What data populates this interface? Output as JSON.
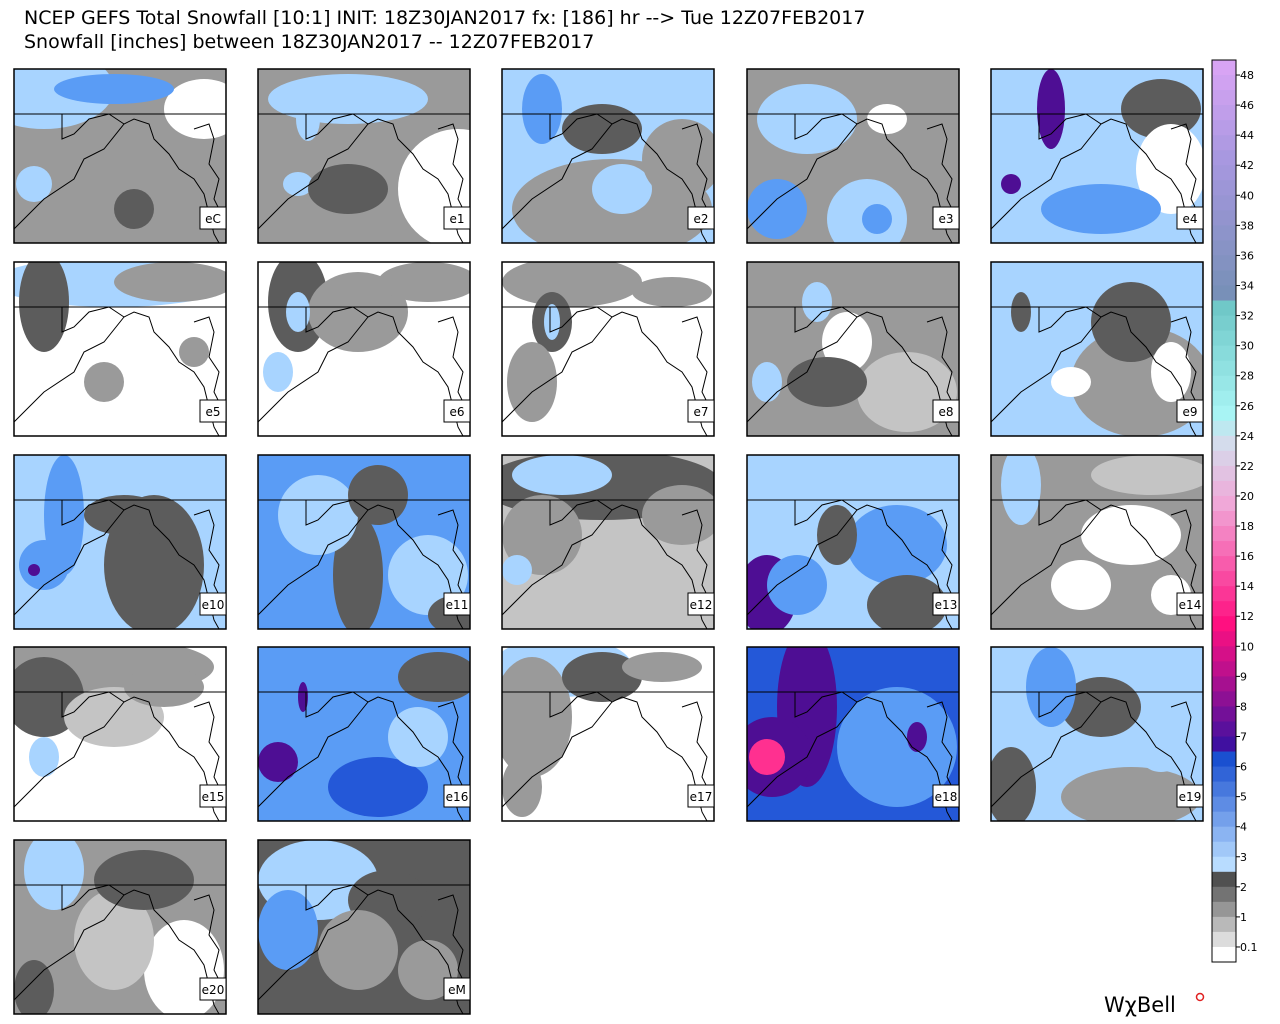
{
  "header": {
    "line1": "NCEP GEFS Total Snowfall [10:1] INIT: 18Z30JAN2017 fx: [186] hr --> Tue 12Z07FEB2017",
    "line2": "Snowfall [inches] between 18Z30JAN2017 -- 12Z07FEB2017"
  },
  "panels": [
    "eC",
    "e1",
    "e2",
    "e3",
    "e4",
    "e5",
    "e6",
    "e7",
    "e8",
    "e9",
    "e10",
    "e11",
    "e12",
    "e13",
    "e14",
    "e15",
    "e16",
    "e17",
    "e18",
    "e19",
    "e20",
    "eM"
  ],
  "colorbar": {
    "labels": [
      "48",
      "46",
      "44",
      "42",
      "40",
      "38",
      "36",
      "34",
      "32",
      "30",
      "28",
      "26",
      "24",
      "22",
      "20",
      "18",
      "16",
      "14",
      "12",
      "10",
      "9",
      "8",
      "7",
      "6",
      "5",
      "4",
      "3",
      "2",
      "1",
      "0.1"
    ]
  },
  "logo": "WχBell"
}
